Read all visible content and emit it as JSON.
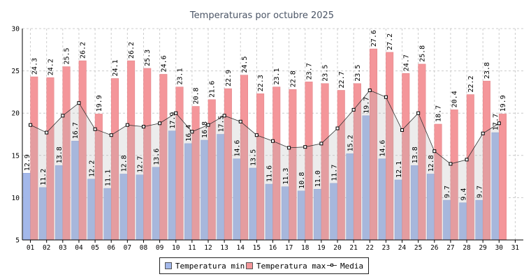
{
  "chart_data": {
    "type": "bar",
    "title": "Temperaturas por octubre 2025",
    "categories": [
      "01",
      "02",
      "03",
      "04",
      "05",
      "06",
      "07",
      "08",
      "09",
      "10",
      "11",
      "12",
      "13",
      "14",
      "15",
      "16",
      "17",
      "18",
      "19",
      "20",
      "21",
      "22",
      "23",
      "24",
      "25",
      "26",
      "27",
      "28",
      "29",
      "30",
      "31"
    ],
    "series": [
      {
        "name": "Temperatura min",
        "color": "#a3b8ea",
        "values": [
          12.9,
          11.2,
          13.8,
          16.7,
          12.2,
          11.1,
          12.8,
          12.7,
          13.6,
          17.9,
          16.4,
          16.8,
          17.5,
          14.6,
          13.5,
          11.6,
          11.3,
          10.8,
          11.0,
          11.7,
          15.2,
          19.7,
          14.6,
          12.1,
          13.8,
          12.8,
          9.7,
          9.4,
          9.7,
          17.7,
          null
        ],
        "labels": [
          "12.9",
          "11.2",
          "13.8",
          "16.7",
          "12.2",
          "11.1",
          "12.8",
          "12.7",
          "13.6",
          "17.9",
          "16.4",
          "16.8",
          "17.5",
          "14.6",
          "13.5",
          "11.6",
          "11.3",
          "10.8",
          "11.0",
          "11.7",
          "15.2",
          "19.7",
          "14.6",
          "12.1",
          "13.8",
          "12.8",
          "9.7",
          "9.4",
          "9.7",
          "17.7",
          ""
        ]
      },
      {
        "name": "Temperatura max",
        "color": "#f4969a",
        "values": [
          24.3,
          24.2,
          25.5,
          26.2,
          19.9,
          24.1,
          26.2,
          25.3,
          24.6,
          23.1,
          20.8,
          21.6,
          22.9,
          24.5,
          22.3,
          23.1,
          22.8,
          23.7,
          23.5,
          22.7,
          23.5,
          27.6,
          27.2,
          24.7,
          25.8,
          18.7,
          20.4,
          22.2,
          23.8,
          19.9,
          null
        ],
        "labels": [
          "24.3",
          "24.2",
          "25.5",
          "26.2",
          "19.9",
          "24.1",
          "26.2",
          "25.3",
          "24.6",
          "23.1",
          "20.8",
          "21.6",
          "22.9",
          "24.5",
          "22.3",
          "23.1",
          "22.8",
          "23.7",
          "23.5",
          "22.7",
          "23.5",
          "27.6",
          "27.2",
          "24.7",
          "25.8",
          "18.7",
          "20.4",
          "22.2",
          "23.8",
          "19.9",
          ""
        ]
      },
      {
        "name": "Media",
        "color": "#333333",
        "values": [
          18.6,
          17.7,
          19.7,
          21.2,
          18.1,
          17.4,
          18.6,
          18.4,
          18.8,
          20.0,
          17.8,
          18.6,
          19.7,
          19.0,
          17.4,
          16.7,
          15.9,
          16.0,
          16.4,
          18.2,
          20.4,
          22.7,
          21.9,
          18.0,
          20.0,
          15.5,
          14.0,
          14.5,
          17.6,
          18.8,
          null
        ]
      }
    ],
    "ylim": [
      5,
      30
    ],
    "yticks": [
      5,
      10,
      15,
      20,
      25,
      30
    ],
    "xlabel": "",
    "ylabel": "",
    "grid": true,
    "legend": "bottom-center"
  },
  "legend": {
    "min_label": "Temperatura min",
    "max_label": "Temperatura max",
    "mean_label": "Media"
  }
}
